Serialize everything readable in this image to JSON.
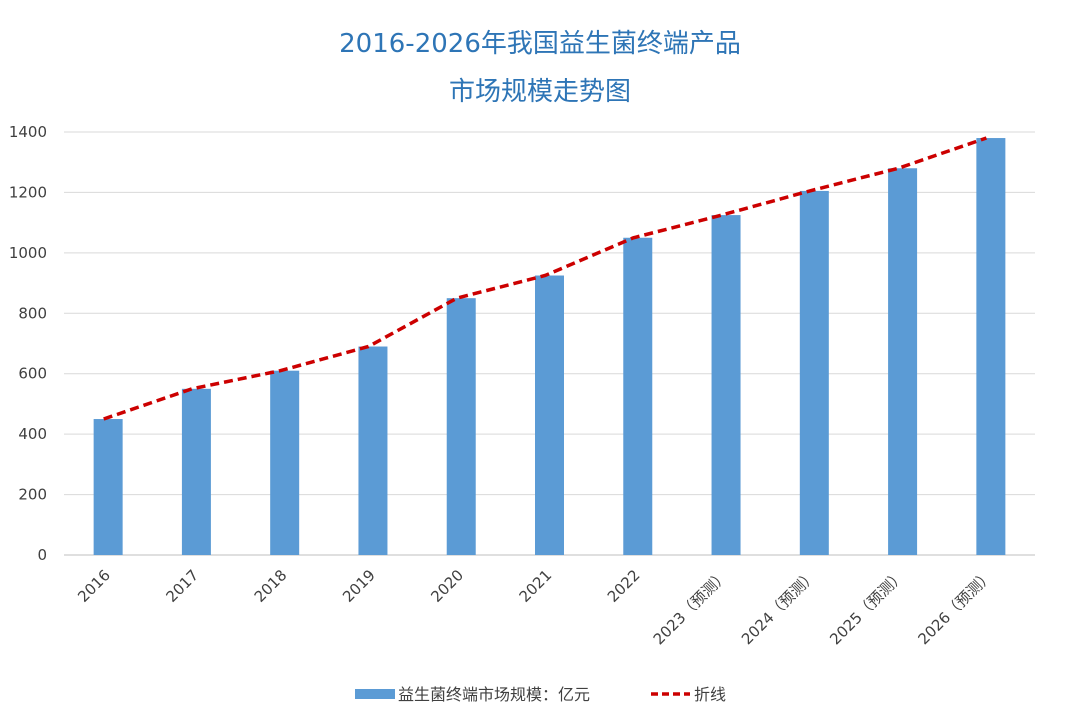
{
  "chart_data": {
    "type": "bar",
    "title": [
      "2016-2026年我国益生菌终端产品",
      "市场规模走势图"
    ],
    "categories": [
      "2016",
      "2017",
      "2018",
      "2019",
      "2020",
      "2021",
      "2022",
      "2023（预测）",
      "2024（预测）",
      "2025（预测）",
      "2026（预测）"
    ],
    "series": [
      {
        "name": "益生菌终端市场规模：亿元",
        "type": "bar",
        "color": "#5b9bd5",
        "values": [
          450,
          550,
          610,
          690,
          850,
          925,
          1050,
          1125,
          1205,
          1280,
          1380
        ]
      },
      {
        "name": "折线",
        "type": "line",
        "style": "dashed",
        "color": "#cc0000",
        "values": [
          450,
          550,
          610,
          690,
          850,
          925,
          1050,
          1125,
          1205,
          1280,
          1380
        ]
      }
    ],
    "ylim": [
      0,
      1400
    ],
    "yticks": [
      0,
      200,
      400,
      600,
      800,
      1000,
      1200,
      1400
    ],
    "grid": true,
    "legend_position": "bottom"
  }
}
